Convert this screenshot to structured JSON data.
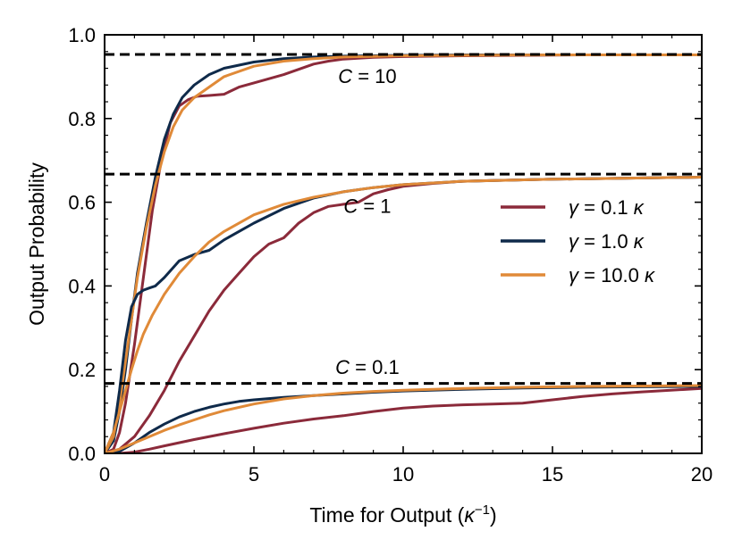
{
  "chart_data": {
    "type": "line",
    "title": "",
    "xlabel": "Time for Output (κ⁻¹)",
    "xlabel_main": "Time for Output (",
    "xlabel_sym": "κ",
    "xlabel_sup": "−1",
    "xlabel_close": ")",
    "ylabel": "Output Probability",
    "xlim": [
      0,
      20
    ],
    "ylim": [
      0,
      1.0
    ],
    "xticks": [
      0,
      5,
      10,
      15,
      20
    ],
    "xtick_labels": [
      "0",
      "5",
      "10",
      "15",
      "20"
    ],
    "yticks": [
      0,
      0.2,
      0.4,
      0.6,
      0.8,
      1.0
    ],
    "ytick_labels": [
      "0.0",
      "0.2",
      "0.4",
      "0.6",
      "0.8",
      "1.0"
    ],
    "grid": false,
    "legend_position": "right-center",
    "colors": {
      "gamma_0_1": "#8b2a3a",
      "gamma_1_0": "#0f2a4a",
      "gamma_10_0": "#e08a38",
      "reference": "#000000"
    },
    "reference_lines": [
      {
        "name": "C = 10 limit",
        "y": 0.953
      },
      {
        "name": "C = 1 limit",
        "y": 0.667
      },
      {
        "name": "C = 0.1 limit",
        "y": 0.167
      }
    ],
    "annotations": [
      {
        "var": "C",
        "text": " = 10",
        "x": 8.8,
        "y": 0.885
      },
      {
        "var": "C",
        "text": " = 1",
        "x": 8.8,
        "y": 0.575
      },
      {
        "var": "C",
        "text": " = 0.1",
        "x": 8.8,
        "y": 0.19
      }
    ],
    "legend": [
      {
        "sym": "γ",
        "text": " = 0.1 ",
        "unit": "κ",
        "color_key": "gamma_0_1"
      },
      {
        "sym": "γ",
        "text": " = 1.0 ",
        "unit": "κ",
        "color_key": "gamma_1_0"
      },
      {
        "sym": "γ",
        "text": " = 10.0 ",
        "unit": "κ",
        "color_key": "gamma_10_0"
      }
    ],
    "series": [
      {
        "name": "γ = 0.1 κ, C = 10",
        "color_key": "gamma_0_1",
        "x": [
          0,
          0.3,
          0.5,
          0.7,
          1.0,
          1.3,
          1.6,
          1.9,
          2.2,
          2.5,
          2.8,
          3.1,
          3.5,
          4.0,
          4.5,
          5.0,
          6.0,
          7.0,
          7.5,
          8.0,
          9.0,
          10.0,
          12.0,
          14.0,
          16.0,
          18.0,
          20.0
        ],
        "y": [
          0,
          0.01,
          0.05,
          0.12,
          0.26,
          0.42,
          0.58,
          0.7,
          0.79,
          0.83,
          0.845,
          0.853,
          0.855,
          0.858,
          0.875,
          0.885,
          0.905,
          0.93,
          0.937,
          0.942,
          0.946,
          0.948,
          0.95,
          0.951,
          0.952,
          0.952,
          0.952
        ]
      },
      {
        "name": "γ = 1.0 κ, C = 10",
        "color_key": "gamma_1_0",
        "x": [
          0,
          0.3,
          0.5,
          0.7,
          0.9,
          1.1,
          1.4,
          1.7,
          2.0,
          2.3,
          2.6,
          3.0,
          3.5,
          4.0,
          5.0,
          6.0,
          7.0,
          8.0,
          10.0,
          12.0,
          15.0,
          20.0
        ],
        "y": [
          0,
          0.03,
          0.1,
          0.2,
          0.32,
          0.43,
          0.55,
          0.66,
          0.75,
          0.81,
          0.85,
          0.88,
          0.905,
          0.92,
          0.935,
          0.943,
          0.947,
          0.949,
          0.951,
          0.952,
          0.952,
          0.952
        ]
      },
      {
        "name": "γ = 10.0 κ, C = 10",
        "color_key": "gamma_10_0",
        "x": [
          0,
          0.3,
          0.5,
          0.7,
          0.9,
          1.1,
          1.4,
          1.7,
          2.0,
          2.3,
          2.6,
          3.0,
          3.5,
          4.0,
          5.0,
          6.0,
          7.0,
          8.0,
          10.0,
          12.0,
          15.0,
          20.0
        ],
        "y": [
          0,
          0.04,
          0.12,
          0.22,
          0.32,
          0.42,
          0.54,
          0.64,
          0.72,
          0.78,
          0.82,
          0.85,
          0.875,
          0.9,
          0.925,
          0.937,
          0.943,
          0.947,
          0.95,
          0.951,
          0.952,
          0.952
        ]
      },
      {
        "name": "γ = 0.1 κ, C = 1",
        "color_key": "gamma_0_1",
        "x": [
          0,
          0.5,
          1.0,
          1.5,
          2.0,
          2.5,
          3.0,
          3.5,
          4.0,
          4.5,
          5.0,
          5.5,
          6.0,
          6.5,
          7.0,
          7.5,
          8.0,
          8.5,
          9.0,
          9.5,
          10.0,
          11.0,
          12.0,
          13.0,
          15.0,
          20.0
        ],
        "y": [
          0,
          0.01,
          0.04,
          0.09,
          0.15,
          0.22,
          0.28,
          0.34,
          0.39,
          0.43,
          0.47,
          0.5,
          0.515,
          0.55,
          0.575,
          0.59,
          0.595,
          0.6,
          0.62,
          0.63,
          0.638,
          0.645,
          0.65,
          0.652,
          0.655,
          0.66
        ]
      },
      {
        "name": "γ = 1.0 κ, C = 1",
        "color_key": "gamma_1_0",
        "x": [
          0,
          0.3,
          0.5,
          0.7,
          0.9,
          1.1,
          1.3,
          1.5,
          1.7,
          2.0,
          2.5,
          3.0,
          3.5,
          4.0,
          5.0,
          6.0,
          7.0,
          8.0,
          9.0,
          10.0,
          12.0,
          15.0,
          20.0
        ],
        "y": [
          0,
          0.05,
          0.15,
          0.27,
          0.35,
          0.38,
          0.39,
          0.395,
          0.4,
          0.42,
          0.46,
          0.475,
          0.485,
          0.51,
          0.55,
          0.585,
          0.61,
          0.625,
          0.635,
          0.642,
          0.65,
          0.655,
          0.66
        ]
      },
      {
        "name": "γ = 10.0 κ, C = 1",
        "color_key": "gamma_10_0",
        "x": [
          0,
          0.3,
          0.5,
          0.7,
          0.9,
          1.1,
          1.3,
          1.6,
          2.0,
          2.5,
          3.0,
          3.5,
          4.0,
          5.0,
          6.0,
          7.0,
          8.0,
          9.0,
          10.0,
          12.0,
          15.0,
          20.0
        ],
        "y": [
          0,
          0.05,
          0.1,
          0.15,
          0.2,
          0.245,
          0.285,
          0.33,
          0.38,
          0.43,
          0.47,
          0.505,
          0.53,
          0.57,
          0.595,
          0.612,
          0.625,
          0.635,
          0.642,
          0.65,
          0.655,
          0.66
        ]
      },
      {
        "name": "γ = 0.1 κ, C = 0.1",
        "color_key": "gamma_0_1",
        "x": [
          0,
          0.5,
          1.0,
          1.5,
          2.0,
          3.0,
          4.0,
          5.0,
          6.0,
          7.0,
          8.0,
          9.0,
          10.0,
          11.0,
          12.0,
          13.0,
          14.0,
          15.0,
          16.0,
          17.0,
          18.0,
          20.0
        ],
        "y": [
          0,
          0.0,
          0.003,
          0.01,
          0.018,
          0.033,
          0.047,
          0.06,
          0.072,
          0.082,
          0.09,
          0.1,
          0.108,
          0.113,
          0.116,
          0.118,
          0.12,
          0.128,
          0.136,
          0.142,
          0.147,
          0.155
        ]
      },
      {
        "name": "γ = 1.0 κ, C = 0.1",
        "color_key": "gamma_1_0",
        "x": [
          0,
          0.5,
          1.0,
          1.5,
          2.0,
          2.5,
          3.0,
          3.5,
          4.0,
          4.5,
          5.0,
          6.0,
          7.0,
          8.0,
          9.0,
          10.0,
          12.0,
          14.0,
          16.0,
          18.0,
          20.0
        ],
        "y": [
          0,
          0.005,
          0.025,
          0.05,
          0.07,
          0.087,
          0.1,
          0.11,
          0.118,
          0.124,
          0.128,
          0.134,
          0.138,
          0.142,
          0.146,
          0.149,
          0.153,
          0.156,
          0.158,
          0.159,
          0.16
        ]
      },
      {
        "name": "γ = 10.0 κ, C = 0.1",
        "color_key": "gamma_10_0",
        "x": [
          0,
          0.5,
          1.0,
          1.5,
          2.0,
          2.5,
          3.0,
          3.5,
          4.0,
          5.0,
          6.0,
          7.0,
          8.0,
          9.0,
          10.0,
          12.0,
          14.0,
          16.0,
          18.0,
          20.0
        ],
        "y": [
          0,
          0.01,
          0.025,
          0.04,
          0.055,
          0.068,
          0.08,
          0.092,
          0.102,
          0.118,
          0.13,
          0.138,
          0.144,
          0.148,
          0.151,
          0.155,
          0.158,
          0.16,
          0.161,
          0.162
        ]
      }
    ]
  }
}
